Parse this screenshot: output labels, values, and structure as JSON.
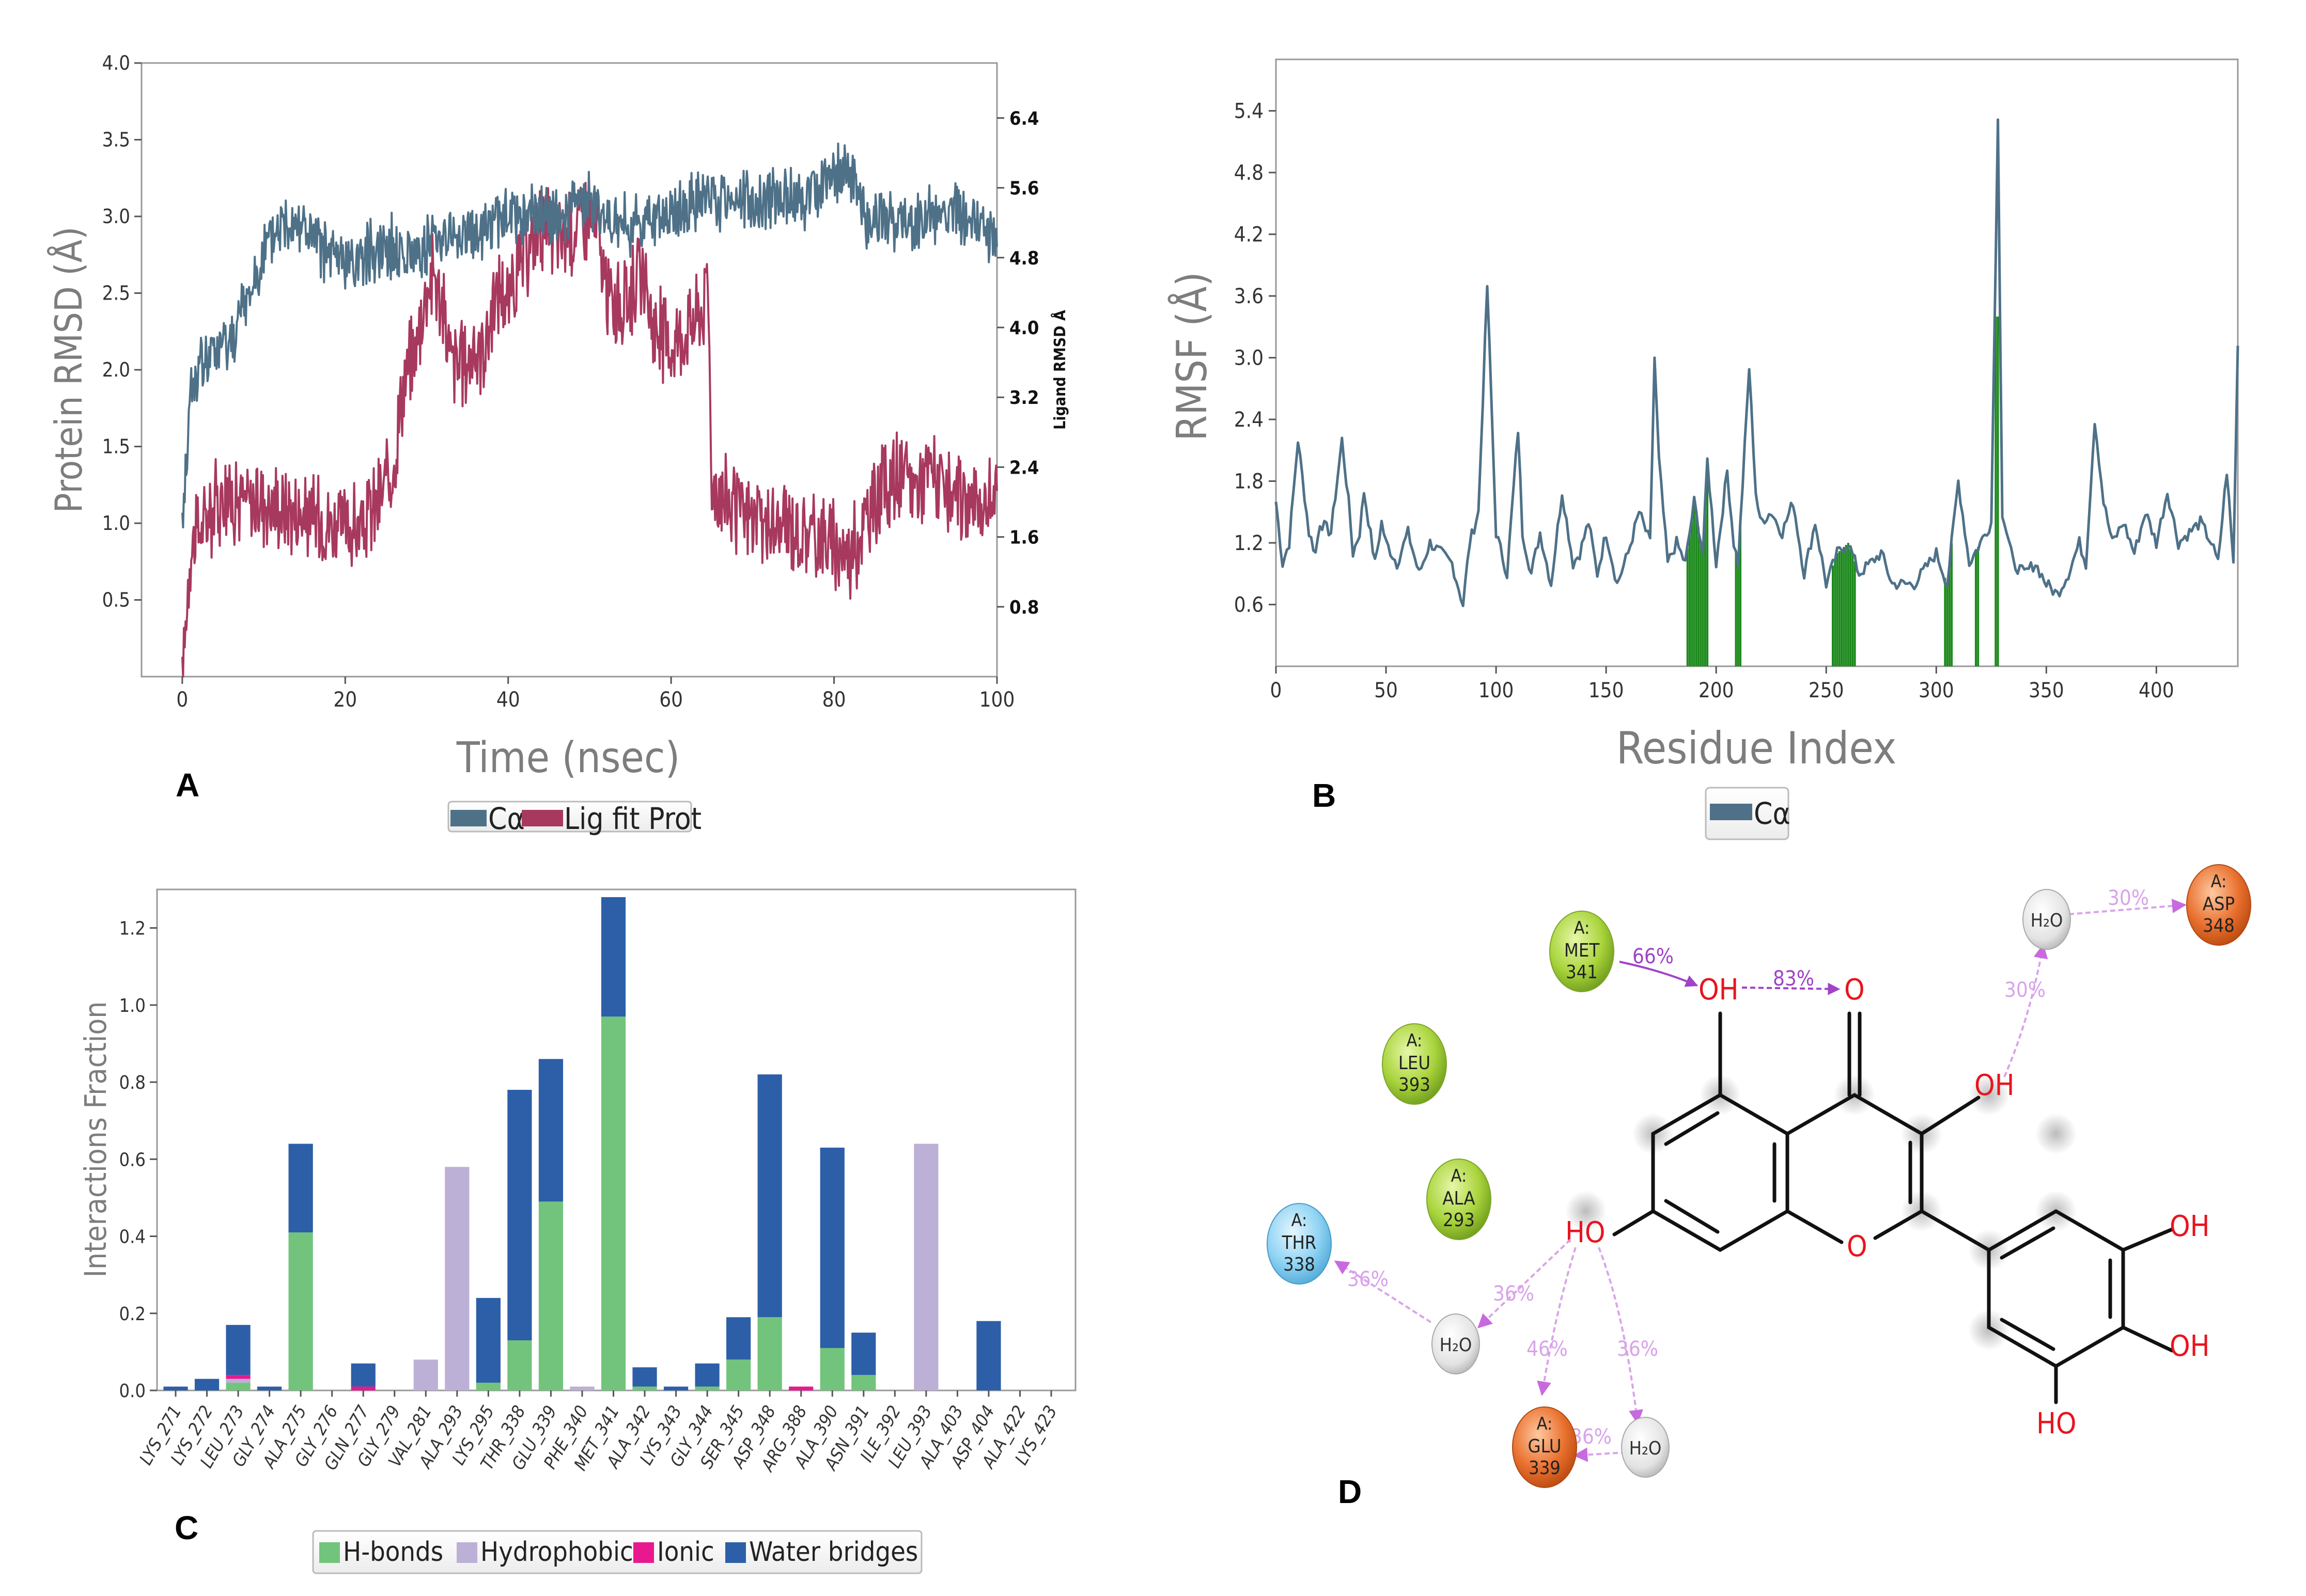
{
  "colors": {
    "calpha": "#4e7188",
    "ligand": "#a8395e",
    "green_marker": "#1c8a1c",
    "hbond": "#72c47c",
    "hydrophobic": "#bdb0d6",
    "ionic": "#e8198f",
    "water": "#2d5fa8",
    "axis_title": "#7d7d7d"
  },
  "panels": {
    "a": {
      "letter": "A"
    },
    "b": {
      "letter": "B"
    },
    "c": {
      "letter": "C"
    },
    "d": {
      "letter": "D"
    }
  },
  "chart_data": [
    {
      "id": "A",
      "type": "line",
      "xlabel": "Time (nsec)",
      "ylabel_left": "Protein RMSD (Å)",
      "ylabel_right": "Ligand RMSD Å",
      "xlim": [
        -5,
        100
      ],
      "ylim_left": [
        0,
        4.0
      ],
      "ylim_right": [
        0,
        7.03
      ],
      "xticks": [
        0,
        20,
        40,
        60,
        80,
        100
      ],
      "xtick_labels": [
        "0",
        "20",
        "40",
        "60",
        "80",
        "100"
      ],
      "yticks_left": [
        0.5,
        1.0,
        1.5,
        2.0,
        2.5,
        3.0,
        3.5,
        4.0
      ],
      "ytick_labels_left": [
        "0.5",
        "1.0",
        "1.5",
        "2.0",
        "2.5",
        "3.0",
        "3.5",
        "4.0"
      ],
      "yticks_right": [
        0.8,
        1.6,
        2.4,
        3.2,
        4.0,
        4.8,
        5.6,
        6.4
      ],
      "ytick_labels_right": [
        "0.8",
        "1.6",
        "2.4",
        "3.2",
        "4.0",
        "4.8",
        "5.6",
        "6.4"
      ],
      "legend": [
        "Cα",
        "Lig fit Prot"
      ],
      "series": [
        {
          "name": "Cα",
          "axis": "left",
          "x": [
            0,
            1,
            2,
            4,
            6,
            8,
            10,
            12,
            14,
            16,
            18,
            20,
            22,
            24,
            26,
            28,
            30,
            32,
            34,
            36,
            38,
            40,
            42,
            44,
            46,
            48,
            50,
            52,
            54,
            56,
            58,
            60,
            62,
            64,
            66,
            68,
            70,
            72,
            74,
            76,
            78,
            80,
            82,
            84,
            86,
            88,
            90,
            92,
            94,
            96,
            98,
            100
          ],
          "y": [
            1.0,
            1.85,
            2.0,
            2.1,
            2.2,
            2.45,
            2.75,
            2.95,
            3.0,
            2.85,
            2.75,
            2.7,
            2.75,
            2.8,
            2.8,
            2.75,
            2.8,
            2.9,
            2.85,
            2.9,
            2.95,
            3.0,
            3.0,
            3.0,
            3.0,
            3.05,
            3.1,
            3.0,
            2.95,
            2.95,
            3.0,
            3.0,
            3.05,
            3.1,
            3.1,
            3.15,
            3.1,
            3.1,
            3.15,
            3.1,
            3.2,
            3.3,
            3.25,
            3.0,
            3.0,
            2.95,
            2.95,
            3.0,
            3.05,
            2.95,
            2.95,
            2.85
          ]
        },
        {
          "name": "Lig fit Prot",
          "axis": "right",
          "x": [
            0,
            1,
            3,
            5,
            8,
            11,
            14,
            17,
            20,
            22,
            24,
            26,
            27,
            28,
            29,
            30,
            31,
            32,
            33,
            35,
            37,
            39,
            40,
            42,
            44,
            46,
            48,
            50,
            51,
            52,
            54,
            56,
            58,
            60,
            62,
            64,
            64.5,
            65,
            68,
            72,
            76,
            80,
            82,
            84,
            86,
            88,
            90,
            92,
            94,
            96,
            98,
            100
          ],
          "y": [
            0.0,
            1.5,
            1.8,
            2.1,
            2.0,
            2.0,
            1.9,
            1.8,
            1.7,
            1.7,
            2.0,
            2.4,
            3.3,
            3.6,
            3.9,
            4.5,
            4.6,
            4.2,
            3.6,
            3.6,
            3.8,
            4.5,
            4.3,
            4.8,
            5.2,
            5.0,
            5.1,
            5.3,
            5.1,
            4.4,
            4.2,
            4.6,
            4.0,
            3.8,
            4.0,
            4.2,
            4.6,
            2.2,
            1.9,
            1.7,
            1.7,
            1.5,
            1.4,
            1.8,
            2.2,
            2.3,
            2.2,
            2.4,
            2.0,
            2.0,
            2.0,
            2.0
          ]
        }
      ]
    },
    {
      "id": "B",
      "type": "line",
      "xlabel": "Residue Index",
      "ylabel": "RMSF (Å)",
      "xlim": [
        0,
        437
      ],
      "ylim": [
        0,
        5.9
      ],
      "xticks": [
        0,
        50,
        100,
        150,
        200,
        250,
        300,
        350,
        400
      ],
      "xtick_labels": [
        "0",
        "50",
        "100",
        "150",
        "200",
        "250",
        "300",
        "350",
        "400"
      ],
      "yticks": [
        0.6,
        1.2,
        1.8,
        2.4,
        3.0,
        3.6,
        4.2,
        4.8,
        5.4
      ],
      "ytick_labels": [
        "0.6",
        "1.2",
        "1.8",
        "2.4",
        "3.0",
        "3.6",
        "4.2",
        "4.8",
        "5.4"
      ],
      "legend": [
        "Cα"
      ],
      "series": [
        {
          "name": "Cα",
          "x": [
            0,
            3,
            6,
            10,
            15,
            18,
            20,
            25,
            30,
            33,
            35,
            38,
            40,
            45,
            48,
            50,
            55,
            60,
            65,
            70,
            75,
            80,
            85,
            88,
            92,
            96,
            98,
            100,
            105,
            110,
            112,
            116,
            120,
            125,
            130,
            135,
            138,
            142,
            146,
            150,
            155,
            160,
            165,
            170,
            172,
            174,
            178,
            182,
            186,
            190,
            194,
            196,
            200,
            205,
            208,
            210,
            215,
            218,
            220,
            225,
            230,
            235,
            240,
            245,
            250,
            255,
            260,
            265,
            270,
            275,
            280,
            290,
            300,
            305,
            310,
            315,
            320,
            325,
            328,
            330,
            335,
            340,
            345,
            350,
            355,
            360,
            365,
            368,
            372,
            376,
            380,
            385,
            390,
            395,
            400,
            405,
            410,
            415,
            420,
            425,
            428,
            432,
            435,
            437
          ],
          "y": [
            1.6,
            1.0,
            1.2,
            2.2,
            1.3,
            1.1,
            1.4,
            1.3,
            2.2,
            1.6,
            1.1,
            1.3,
            1.7,
            1.0,
            1.4,
            1.2,
            1.0,
            1.3,
            0.9,
            1.2,
            1.1,
            1.0,
            0.6,
            1.2,
            1.5,
            3.7,
            2.5,
            1.3,
            0.9,
            2.3,
            1.3,
            0.9,
            1.3,
            0.8,
            1.7,
            1.0,
            1.1,
            1.4,
            0.9,
            1.3,
            0.8,
            1.1,
            1.5,
            1.2,
            3.0,
            2.0,
            1.0,
            1.2,
            1.0,
            1.6,
            1.1,
            2.0,
            1.0,
            1.9,
            1.2,
            1.0,
            2.9,
            1.7,
            1.4,
            1.5,
            1.3,
            1.6,
            0.9,
            1.4,
            0.8,
            1.1,
            1.2,
            0.9,
            1.0,
            1.1,
            0.8,
            0.8,
            1.1,
            0.8,
            1.8,
            1.0,
            1.2,
            1.4,
            5.3,
            1.5,
            1.0,
            0.9,
            1.0,
            0.8,
            0.7,
            0.9,
            1.2,
            1.0,
            2.4,
            1.6,
            1.2,
            1.4,
            1.1,
            1.5,
            1.2,
            1.7,
            1.2,
            1.3,
            1.4,
            1.2,
            1.0,
            1.9,
            1.0,
            3.1
          ]
        }
      ],
      "contact_residues": [
        187,
        188,
        189,
        190,
        191,
        192,
        193,
        194,
        195,
        196,
        209,
        210,
        211,
        253,
        254,
        255,
        256,
        257,
        258,
        259,
        260,
        261,
        262,
        263,
        304,
        305,
        306,
        307,
        318,
        319,
        327,
        328
      ]
    },
    {
      "id": "C",
      "type": "bar",
      "stacked": true,
      "ylabel": "Interactions Fraction",
      "ylim": [
        0,
        1.3
      ],
      "yticks": [
        0.0,
        0.2,
        0.4,
        0.6,
        0.8,
        1.0,
        1.2
      ],
      "ytick_labels": [
        "0.0",
        "0.2",
        "0.4",
        "0.6",
        "0.8",
        "1.0",
        "1.2"
      ],
      "categories": [
        "LYS_271",
        "LYS_272",
        "LEU_273",
        "GLY_274",
        "ALA_275",
        "GLY_276",
        "GLN_277",
        "GLY_279",
        "VAL_281",
        "ALA_293",
        "LYS_295",
        "THR_338",
        "GLU_339",
        "PHE_340",
        "MET_341",
        "ALA_342",
        "LYS_343",
        "GLY_344",
        "SER_345",
        "ASP_348",
        "ARG_388",
        "ALA_390",
        "ASN_391",
        "ILE_392",
        "LEU_393",
        "ALA_403",
        "ASP_404",
        "ALA_422",
        "LYS_423"
      ],
      "legend": [
        "H-bonds",
        "Hydrophobic",
        "Ionic",
        "Water bridges"
      ],
      "series": [
        {
          "name": "H-bonds",
          "values": [
            0,
            0,
            0.02,
            0,
            0.41,
            0,
            0,
            0,
            0,
            0,
            0.02,
            0.13,
            0.49,
            0,
            0.97,
            0.01,
            0,
            0.01,
            0.08,
            0.19,
            0,
            0.11,
            0.04,
            0,
            0,
            0,
            0,
            0,
            0
          ]
        },
        {
          "name": "Hydrophobic",
          "values": [
            0,
            0,
            0.01,
            0,
            0,
            0,
            0,
            0,
            0.08,
            0.58,
            0,
            0,
            0,
            0.01,
            0,
            0,
            0,
            0,
            0,
            0,
            0,
            0,
            0,
            0,
            0.64,
            0,
            0,
            0,
            0
          ]
        },
        {
          "name": "Ionic",
          "values": [
            0,
            0,
            0.01,
            0,
            0,
            0,
            0.01,
            0,
            0,
            0,
            0,
            0,
            0,
            0,
            0,
            0,
            0,
            0,
            0,
            0,
            0.01,
            0,
            0,
            0,
            0,
            0,
            0,
            0,
            0
          ]
        },
        {
          "name": "Water bridges",
          "values": [
            0.01,
            0.03,
            0.13,
            0.01,
            0.23,
            0,
            0.06,
            0,
            0,
            0,
            0.22,
            0.65,
            0.37,
            0,
            0.31,
            0.05,
            0.01,
            0.06,
            0.11,
            0.63,
            0,
            0.52,
            0.11,
            0,
            0,
            0,
            0.18,
            0,
            0
          ]
        }
      ]
    }
  ],
  "ligand_diagram": {
    "residues": [
      {
        "id": "met341",
        "chain": "A:",
        "name": "MET",
        "num": "341",
        "type": "hydrophobic"
      },
      {
        "id": "leu393",
        "chain": "A:",
        "name": "LEU",
        "num": "393",
        "type": "hydrophobic"
      },
      {
        "id": "ala293",
        "chain": "A:",
        "name": "ALA",
        "num": "293",
        "type": "hydrophobic"
      },
      {
        "id": "thr338",
        "chain": "A:",
        "name": "THR",
        "num": "338",
        "type": "polar"
      },
      {
        "id": "glu339",
        "chain": "A:",
        "name": "GLU",
        "num": "339",
        "type": "negative"
      },
      {
        "id": "asp348",
        "chain": "A:",
        "name": "ASP",
        "num": "348",
        "type": "negative"
      }
    ],
    "waters": [
      {
        "id": "w1",
        "label": "H₂O"
      },
      {
        "id": "w2",
        "label": "H₂O"
      },
      {
        "id": "w3",
        "label": "H₂O"
      }
    ],
    "atom_labels": {
      "oh_top": "OH",
      "o_carbonyl": "O",
      "oh_c3": "OH",
      "ho_c7": "HO",
      "o_ring": "O",
      "oh_b1": "OH",
      "oh_b2": "OH",
      "ho_b3": "HO"
    },
    "interactions": {
      "met341_oh": "66%",
      "oh_o": "83%",
      "oh_w1": "30%",
      "w1_asp348": "30%",
      "w2_thr338": "36%",
      "ho_w2": "36%",
      "ho_glu339": "46%",
      "ho_w3": "36%",
      "w3_glu339": "36%"
    }
  }
}
